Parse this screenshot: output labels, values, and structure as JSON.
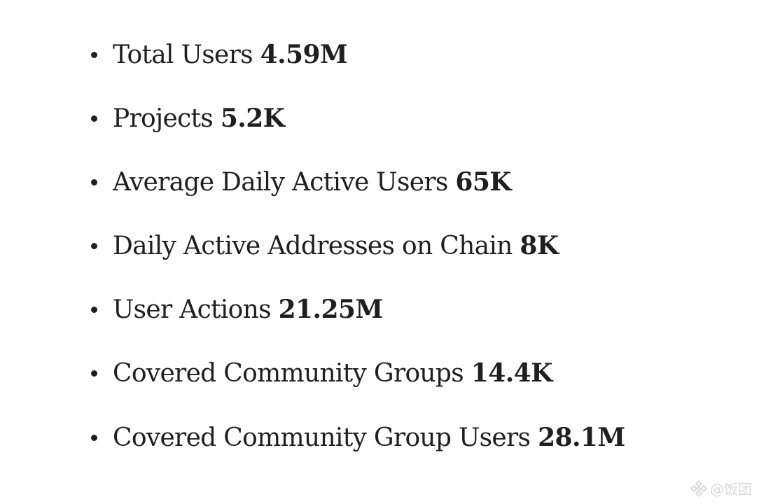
{
  "stats": [
    {
      "label": "Total Users",
      "value": "4.59M"
    },
    {
      "label": "Projects",
      "value": "5.2K"
    },
    {
      "label": "Average Daily Active Users",
      "value": "65K"
    },
    {
      "label": "Daily Active Addresses on Chain",
      "value": "8K"
    },
    {
      "label": "User Actions",
      "value": "21.25M"
    },
    {
      "label": "Covered Community Groups",
      "value": "14.4K"
    },
    {
      "label": "Covered Community Group Users",
      "value": "28.1M"
    }
  ],
  "watermark": {
    "icon": "binance-logo-icon",
    "text": "@饭团"
  }
}
